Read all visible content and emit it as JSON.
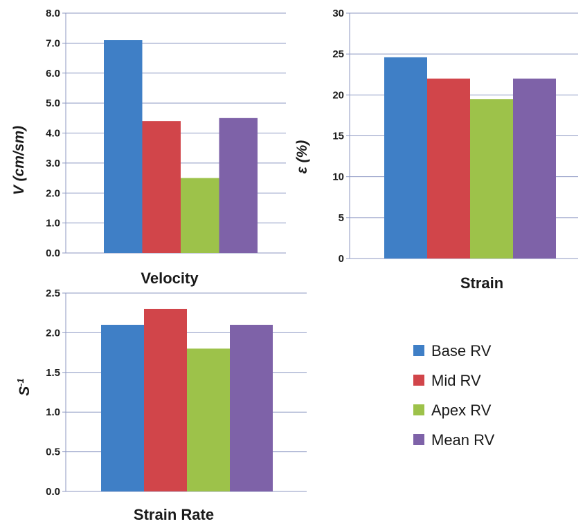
{
  "colors": {
    "base": "#3F7FC6",
    "mid": "#D1454A",
    "apex": "#9DC24A",
    "mean": "#7E62A8",
    "grid": "#8C97C2"
  },
  "legend": {
    "items": [
      {
        "label": "Base RV",
        "color": "#3F7FC6"
      },
      {
        "label": "Mid RV",
        "color": "#D1454A"
      },
      {
        "label": "Apex RV",
        "color": "#9DC24A"
      },
      {
        "label": "Mean RV",
        "color": "#7E62A8"
      }
    ]
  },
  "chart_data": [
    {
      "type": "bar",
      "title": "Velocity",
      "ylabel": "V (cm/sm)",
      "ylim": [
        0,
        8
      ],
      "yticks": [
        "0.0",
        "1.0",
        "2.0",
        "3.0",
        "4.0",
        "5.0",
        "6.0",
        "7.0",
        "8.0"
      ],
      "grid": true,
      "series": [
        {
          "name": "Base RV",
          "values": [
            7.1
          ]
        },
        {
          "name": "Mid RV",
          "values": [
            4.4
          ]
        },
        {
          "name": "Apex RV",
          "values": [
            2.5
          ]
        },
        {
          "name": "Mean RV",
          "values": [
            4.5
          ]
        }
      ]
    },
    {
      "type": "bar",
      "title": "Strain",
      "ylabel": "ε (%)",
      "ylim": [
        0,
        30
      ],
      "yticks": [
        "0",
        "5",
        "10",
        "15",
        "20",
        "25",
        "30"
      ],
      "grid": true,
      "series": [
        {
          "name": "Base RV",
          "values": [
            24.6
          ]
        },
        {
          "name": "Mid RV",
          "values": [
            22
          ]
        },
        {
          "name": "Apex RV",
          "values": [
            19.5
          ]
        },
        {
          "name": "Mean RV",
          "values": [
            22
          ]
        }
      ]
    },
    {
      "type": "bar",
      "title": "Strain Rate",
      "ylabel": "S-1",
      "ylim": [
        0,
        2.5
      ],
      "yticks": [
        "0.0",
        "0.5",
        "1.0",
        "1.5",
        "2.0",
        "2.5"
      ],
      "grid": true,
      "series": [
        {
          "name": "Base RV",
          "values": [
            2.1
          ]
        },
        {
          "name": "Mid RV",
          "values": [
            2.3
          ]
        },
        {
          "name": "Apex RV",
          "values": [
            1.8
          ]
        },
        {
          "name": "Mean RV",
          "values": [
            2.1
          ]
        }
      ]
    }
  ]
}
